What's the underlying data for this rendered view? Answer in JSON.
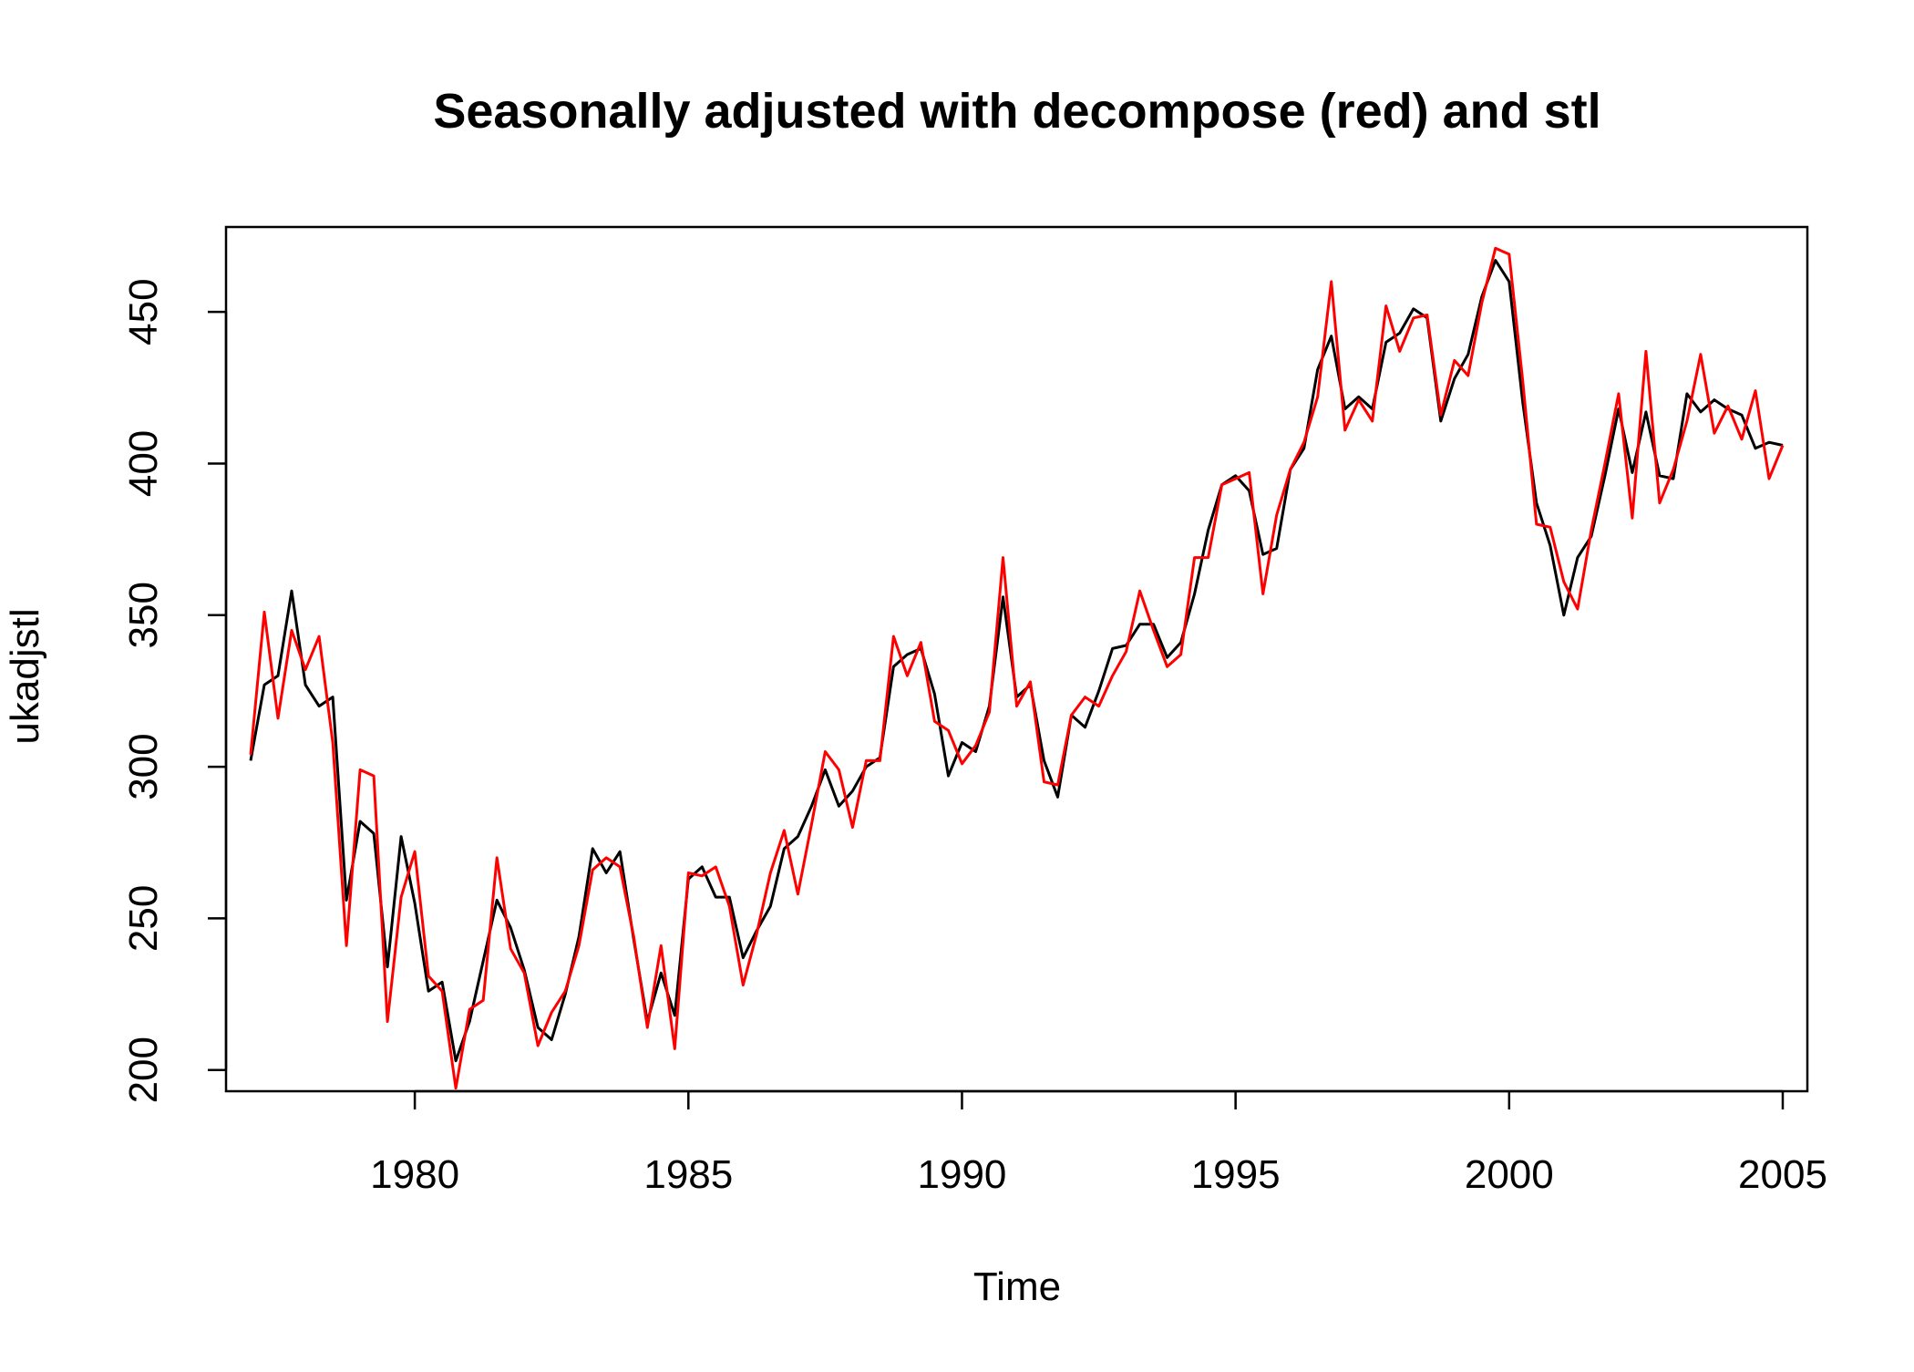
{
  "chart_data": {
    "type": "line",
    "title": "Seasonally adjusted with decompose (red) and stl",
    "xlabel": "Time",
    "ylabel": "ukadjstl",
    "xlim": [
      1976.55,
      2005.45
    ],
    "ylim": [
      193,
      478
    ],
    "x_ticks": [
      1980,
      1985,
      1990,
      1995,
      2000,
      2005
    ],
    "y_ticks": [
      200,
      250,
      300,
      350,
      400,
      450
    ],
    "x_tick_labels": [
      "1980",
      "1985",
      "1990",
      "1995",
      "2000",
      "2005"
    ],
    "y_tick_labels": [
      "200",
      "250",
      "300",
      "350",
      "400",
      "450"
    ],
    "grid": false,
    "legend": "none",
    "x": [
      1977.0,
      1977.25,
      1977.5,
      1977.75,
      1978.0,
      1978.25,
      1978.5,
      1978.75,
      1979.0,
      1979.25,
      1979.5,
      1979.75,
      1980.0,
      1980.25,
      1980.5,
      1980.75,
      1981.0,
      1981.25,
      1981.5,
      1981.75,
      1982.0,
      1982.25,
      1982.5,
      1982.75,
      1983.0,
      1983.25,
      1983.5,
      1983.75,
      1984.0,
      1984.25,
      1984.5,
      1984.75,
      1985.0,
      1985.25,
      1985.5,
      1985.75,
      1986.0,
      1986.25,
      1986.5,
      1986.75,
      1987.0,
      1987.25,
      1987.5,
      1987.75,
      1988.0,
      1988.25,
      1988.5,
      1988.75,
      1989.0,
      1989.25,
      1989.5,
      1989.75,
      1990.0,
      1990.25,
      1990.5,
      1990.75,
      1991.0,
      1991.25,
      1991.5,
      1991.75,
      1992.0,
      1992.25,
      1992.5,
      1992.75,
      1993.0,
      1993.25,
      1993.5,
      1993.75,
      1994.0,
      1994.25,
      1994.5,
      1994.75,
      1995.0,
      1995.25,
      1995.5,
      1995.75,
      1996.0,
      1996.25,
      1996.5,
      1996.75,
      1997.0,
      1997.25,
      1997.5,
      1997.75,
      1998.0,
      1998.25,
      1998.5,
      1998.75,
      1999.0,
      1999.25,
      1999.5,
      1999.75,
      2000.0,
      2000.25,
      2000.5,
      2000.75,
      2001.0,
      2001.25,
      2001.5,
      2001.75,
      2002.0,
      2002.25,
      2002.5,
      2002.75,
      2003.0,
      2003.25,
      2003.5,
      2003.75,
      2004.0,
      2004.25,
      2004.5,
      2004.75,
      2005.0
    ],
    "series": [
      {
        "color": "#000000",
        "values": [
          302,
          327,
          330,
          358,
          327,
          320,
          323,
          256,
          282,
          278,
          234,
          277,
          255,
          226,
          229,
          203,
          216,
          236,
          256,
          247,
          233,
          214,
          210,
          225,
          244,
          273,
          265,
          272,
          243,
          216,
          232,
          218,
          263,
          267,
          257,
          257,
          237,
          246,
          254,
          273,
          277,
          287,
          299,
          287,
          292,
          300,
          303,
          333,
          337,
          339,
          324,
          297,
          308,
          305,
          320,
          356,
          323,
          327,
          302,
          290,
          317,
          313,
          325,
          339,
          340,
          347,
          347,
          336,
          341,
          357,
          378,
          393,
          396,
          391,
          370,
          372,
          398,
          405,
          431,
          442,
          418,
          422,
          418,
          440,
          443,
          451,
          448,
          414,
          428,
          436,
          455,
          467,
          460,
          420,
          387,
          373,
          350,
          369,
          376,
          396,
          418,
          397,
          417,
          396,
          395,
          423,
          417,
          421,
          418,
          416,
          405,
          407,
          406
        ],
        "name": ""
      },
      {
        "color": "#ff0000",
        "values": [
          304,
          351,
          316,
          345,
          332,
          343,
          308,
          241,
          299,
          297,
          216,
          257,
          272,
          231,
          226,
          194,
          220,
          223,
          270,
          240,
          232,
          208,
          219,
          226,
          241,
          266,
          270,
          267,
          244,
          214,
          241,
          207,
          265,
          264,
          267,
          254,
          228,
          245,
          265,
          279,
          258,
          281,
          305,
          299,
          280,
          302,
          302,
          343,
          330,
          341,
          315,
          312,
          301,
          307,
          318,
          369,
          320,
          328,
          295,
          294,
          317,
          323,
          320,
          330,
          338,
          358,
          345,
          333,
          337,
          369,
          369,
          393,
          395,
          397,
          357,
          383,
          398,
          407,
          422,
          460,
          411,
          421,
          414,
          452,
          437,
          448,
          449,
          416,
          434,
          429,
          453,
          471,
          469,
          427,
          380,
          379,
          361,
          352,
          378,
          400,
          423,
          382,
          437,
          387,
          398,
          414,
          436,
          410,
          419,
          408,
          424,
          395,
          406
        ],
        "name": ""
      }
    ]
  }
}
